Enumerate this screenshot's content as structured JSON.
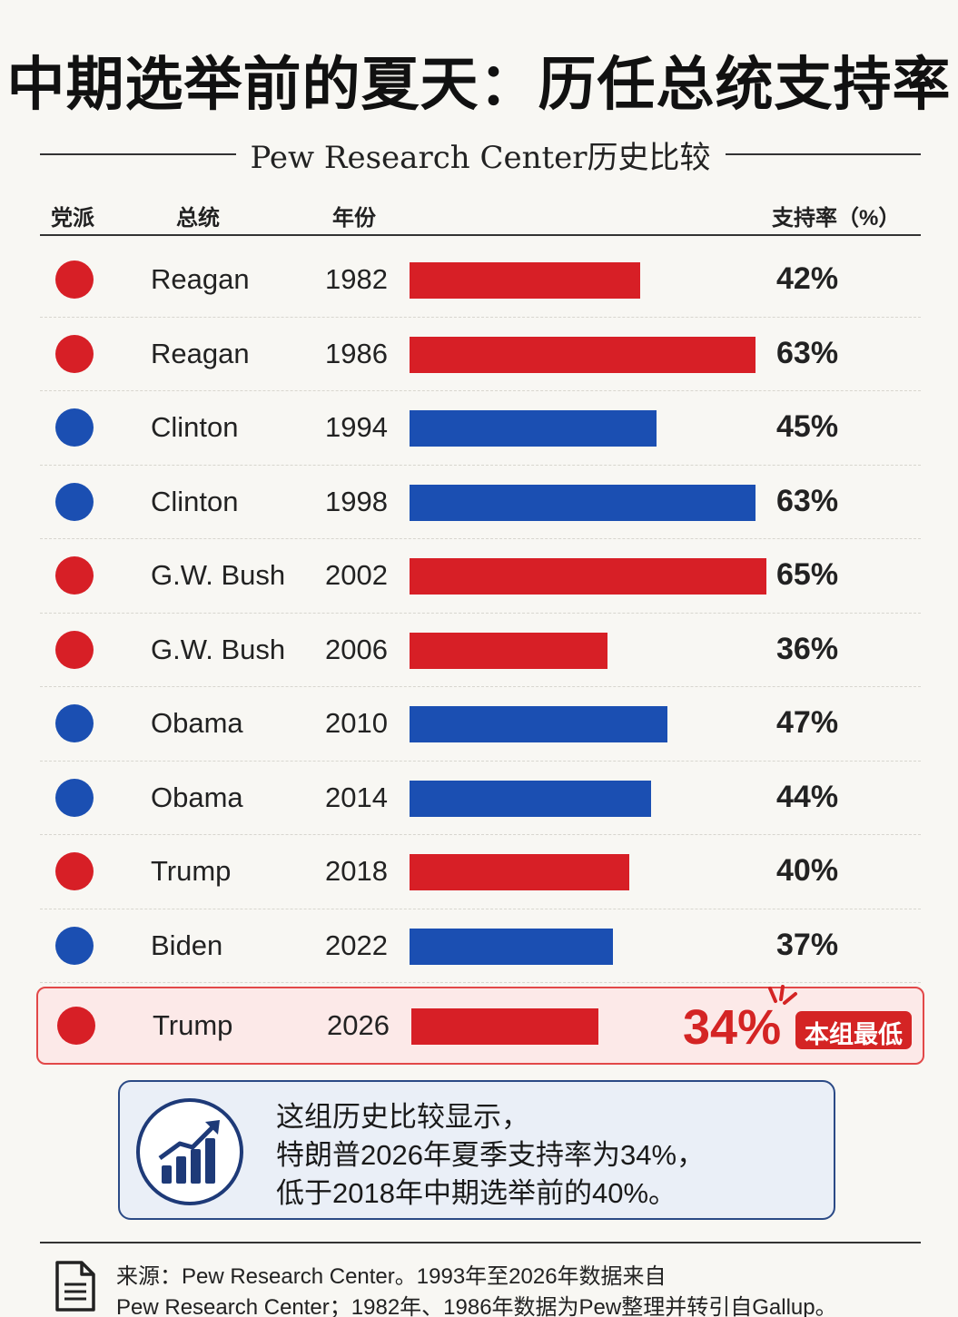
{
  "chart_data": {
    "type": "bar",
    "title": "中期选举前的夏天：历任总统支持率",
    "subtitle": "Pew Research Center历史比较",
    "columns": [
      "党派",
      "总统",
      "年份",
      "支持率（%）"
    ],
    "xlim": [
      0,
      65
    ],
    "rows": [
      {
        "name": "Reagan",
        "year": "1982",
        "value": 42,
        "label": "42%",
        "party": "republican"
      },
      {
        "name": "Reagan",
        "year": "1986",
        "value": 63,
        "label": "63%",
        "party": "republican"
      },
      {
        "name": "Clinton",
        "year": "1994",
        "value": 45,
        "label": "45%",
        "party": "democrat"
      },
      {
        "name": "Clinton",
        "year": "1998",
        "value": 63,
        "label": "63%",
        "party": "democrat"
      },
      {
        "name": "G.W. Bush",
        "year": "2002",
        "value": 65,
        "label": "65%",
        "party": "republican"
      },
      {
        "name": "G.W. Bush",
        "year": "2006",
        "value": 36,
        "label": "36%",
        "party": "republican"
      },
      {
        "name": "Obama",
        "year": "2010",
        "value": 47,
        "label": "47%",
        "party": "democrat"
      },
      {
        "name": "Obama",
        "year": "2014",
        "value": 44,
        "label": "44%",
        "party": "democrat"
      },
      {
        "name": "Trump",
        "year": "2018",
        "value": 40,
        "label": "40%",
        "party": "republican"
      },
      {
        "name": "Biden",
        "year": "2022",
        "value": 37,
        "label": "37%",
        "party": "democrat"
      },
      {
        "name": "Trump",
        "year": "2026",
        "value": 34,
        "label": "34%",
        "party": "republican",
        "highlight": true,
        "badge": "本组最低"
      }
    ],
    "colors": {
      "republican": "#d71f26",
      "democrat": "#1b4fb2"
    }
  },
  "note": {
    "lines": [
      "这组历史比较显示，",
      "特朗普2026年夏季支持率为34%，",
      "低于2018年中期选举前的40%。"
    ]
  },
  "source": {
    "lines": [
      "来源：Pew Research Center。1993年至2026年数据来自",
      "Pew Research Center；1982年、1986年数据为Pew整理并转引自Gallup。"
    ]
  }
}
